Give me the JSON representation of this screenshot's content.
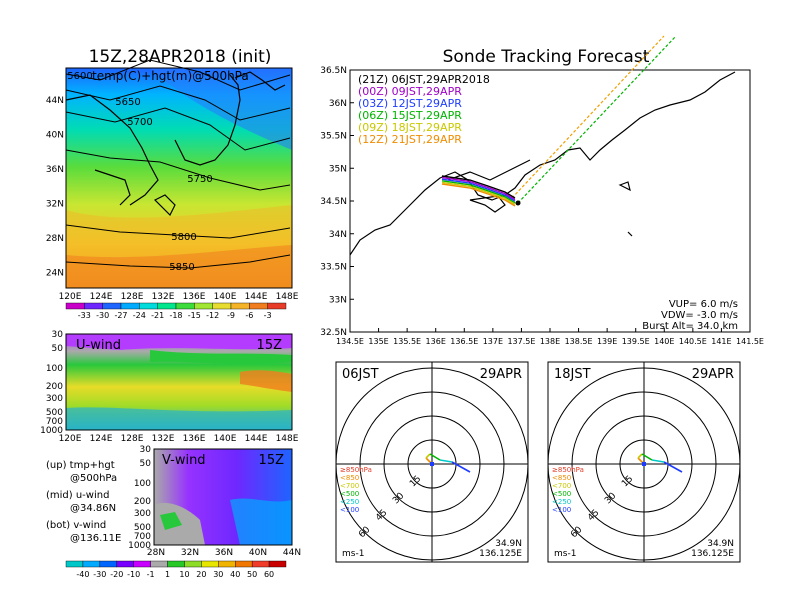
{
  "left_title": "15Z,28APR2018 (init)",
  "right_title": "Sonde Tracking Forecast",
  "map500": {
    "label": "temp(C)+hgt(m)@500hPa",
    "lon_ticks": [
      "120E",
      "124E",
      "128E",
      "132E",
      "136E",
      "140E",
      "144E",
      "148E"
    ],
    "lat_ticks": [
      "44N",
      "40N",
      "36N",
      "32N",
      "28N",
      "24N"
    ],
    "contours": [
      {
        "label": "5600",
        "pts": [
          [
            66,
            74
          ],
          [
            100,
            80
          ],
          [
            150,
            60
          ],
          [
            200,
            72
          ],
          [
            240,
            90
          ],
          [
            290,
            75
          ]
        ]
      },
      {
        "label": "5650",
        "pts": [
          [
            66,
            90
          ],
          [
            110,
            100
          ],
          [
            160,
            86
          ],
          [
            205,
            100
          ],
          [
            240,
            120
          ],
          [
            290,
            108
          ]
        ]
      },
      {
        "label": "5700",
        "pts": [
          [
            66,
            112
          ],
          [
            115,
            122
          ],
          [
            165,
            108
          ],
          [
            210,
            125
          ],
          [
            245,
            150
          ],
          [
            290,
            138
          ]
        ]
      },
      {
        "label": "5750",
        "pts": [
          [
            66,
            150
          ],
          [
            110,
            158
          ],
          [
            160,
            162
          ],
          [
            210,
            178
          ],
          [
            260,
            190
          ],
          [
            290,
            185
          ]
        ]
      },
      {
        "label": "5800",
        "pts": [
          [
            66,
            225
          ],
          [
            120,
            232
          ],
          [
            175,
            235
          ],
          [
            230,
            238
          ],
          [
            290,
            228
          ]
        ]
      },
      {
        "label": "5850",
        "pts": [
          [
            66,
            262
          ],
          [
            130,
            266
          ],
          [
            190,
            268
          ],
          [
            250,
            262
          ],
          [
            290,
            255
          ]
        ]
      }
    ],
    "contour_label_pos": [
      [
        80,
        75
      ],
      [
        128,
        101
      ],
      [
        140,
        121
      ],
      [
        200,
        178
      ],
      [
        184,
        236
      ],
      [
        182,
        266
      ]
    ]
  },
  "colorbar_temp": {
    "labels": [
      "-33",
      "-30",
      "-27",
      "-24",
      "-21",
      "-18",
      "-15",
      "-12",
      "-9",
      "-6",
      "-3"
    ],
    "colors": [
      "#c800c8",
      "#6e28ff",
      "#1e64ff",
      "#00aaff",
      "#00dcdc",
      "#00e68c",
      "#3cdc3c",
      "#a0e632",
      "#e6dc32",
      "#f5b428",
      "#f07d1e",
      "#e63c28"
    ]
  },
  "uwind": {
    "label": "U-wind",
    "time": "15Z",
    "pressure_ticks": [
      "30",
      "50",
      "100",
      "200",
      "300",
      "500",
      "700",
      "1000"
    ],
    "lon_ticks": [
      "120E",
      "124E",
      "128E",
      "132E",
      "136E",
      "140E",
      "144E",
      "148E"
    ]
  },
  "vwind": {
    "label": "V-wind",
    "time": "15Z",
    "pressure_ticks": [
      "30",
      "50",
      "100",
      "200",
      "300",
      "500",
      "700",
      "1000"
    ],
    "lat_ticks": [
      "28N",
      "32N",
      "36N",
      "40N",
      "44N"
    ]
  },
  "colorbar_wind": {
    "labels": [
      "-40",
      "-30",
      "-20",
      "-10",
      "-1",
      "1",
      "10",
      "20",
      "30",
      "40",
      "50",
      "60"
    ],
    "colors": [
      "#00c8c8",
      "#00aaff",
      "#0064ff",
      "#7800ff",
      "#c800ff",
      "#aaaaaa",
      "#28c828",
      "#8cdc28",
      "#e6e600",
      "#f0b400",
      "#f07800",
      "#f03c28",
      "#c80000"
    ]
  },
  "legend_left": [
    {
      "line1": "(up) tmp+hgt",
      "line2": "@500hPa"
    },
    {
      "line1": "(mid) u-wind",
      "line2": "@34.86N"
    },
    {
      "line1": "(bot) v-wind",
      "line2": "@136.11E"
    }
  ],
  "tracking": {
    "lon_ticks": [
      "134.5E",
      "135E",
      "135.5E",
      "136E",
      "136.5E",
      "137E",
      "137.5E",
      "138E",
      "138.5E",
      "139E",
      "139.5E",
      "140E",
      "140.5E",
      "141E",
      "141.5E"
    ],
    "lat_ticks": [
      "36.5N",
      "36N",
      "35.5N",
      "35N",
      "34.5N",
      "34N",
      "33.5N",
      "33N",
      "32.5N"
    ],
    "legend": [
      {
        "text": "(21Z)  06JST,29APR2018",
        "color": "#000000"
      },
      {
        "text": "(00Z)  09JST,29APR",
        "color": "#a000c8"
      },
      {
        "text": "(03Z)  12JST,29APR",
        "color": "#1e3cff"
      },
      {
        "text": "(06Z)  15JST,29APR",
        "color": "#00b400"
      },
      {
        "text": "(09Z)  18JST,29APR",
        "color": "#c8c800"
      },
      {
        "text": "(12Z)  21JST,29APR",
        "color": "#f08c00"
      }
    ],
    "stats": [
      "VUP=  6.0  m/s",
      "VDW= -3.0  m/s",
      "Burst Alt=  34.0  km"
    ]
  },
  "hodo_left": {
    "time": "06JST",
    "date": "29APR",
    "ring_labels": [
      "15",
      "30",
      "45",
      "60"
    ],
    "unit": "ms-1",
    "lat": "34.9N",
    "lon": "136.125E"
  },
  "hodo_right": {
    "time": "18JST",
    "date": "29APR",
    "ring_labels": [
      "15",
      "30",
      "45",
      "60"
    ],
    "unit": "ms-1",
    "lat": "34.9N",
    "lon": "136.125E"
  },
  "hodo_levels": [
    {
      "text": "≥850hPa",
      "color": "#e63c28"
    },
    {
      "text": "<850",
      "color": "#f08c00"
    },
    {
      "text": "<700",
      "color": "#c8c800"
    },
    {
      "text": "<500",
      "color": "#00b400"
    },
    {
      "text": "<250",
      "color": "#00c8c8"
    },
    {
      "text": "<100",
      "color": "#1e3cff"
    }
  ]
}
